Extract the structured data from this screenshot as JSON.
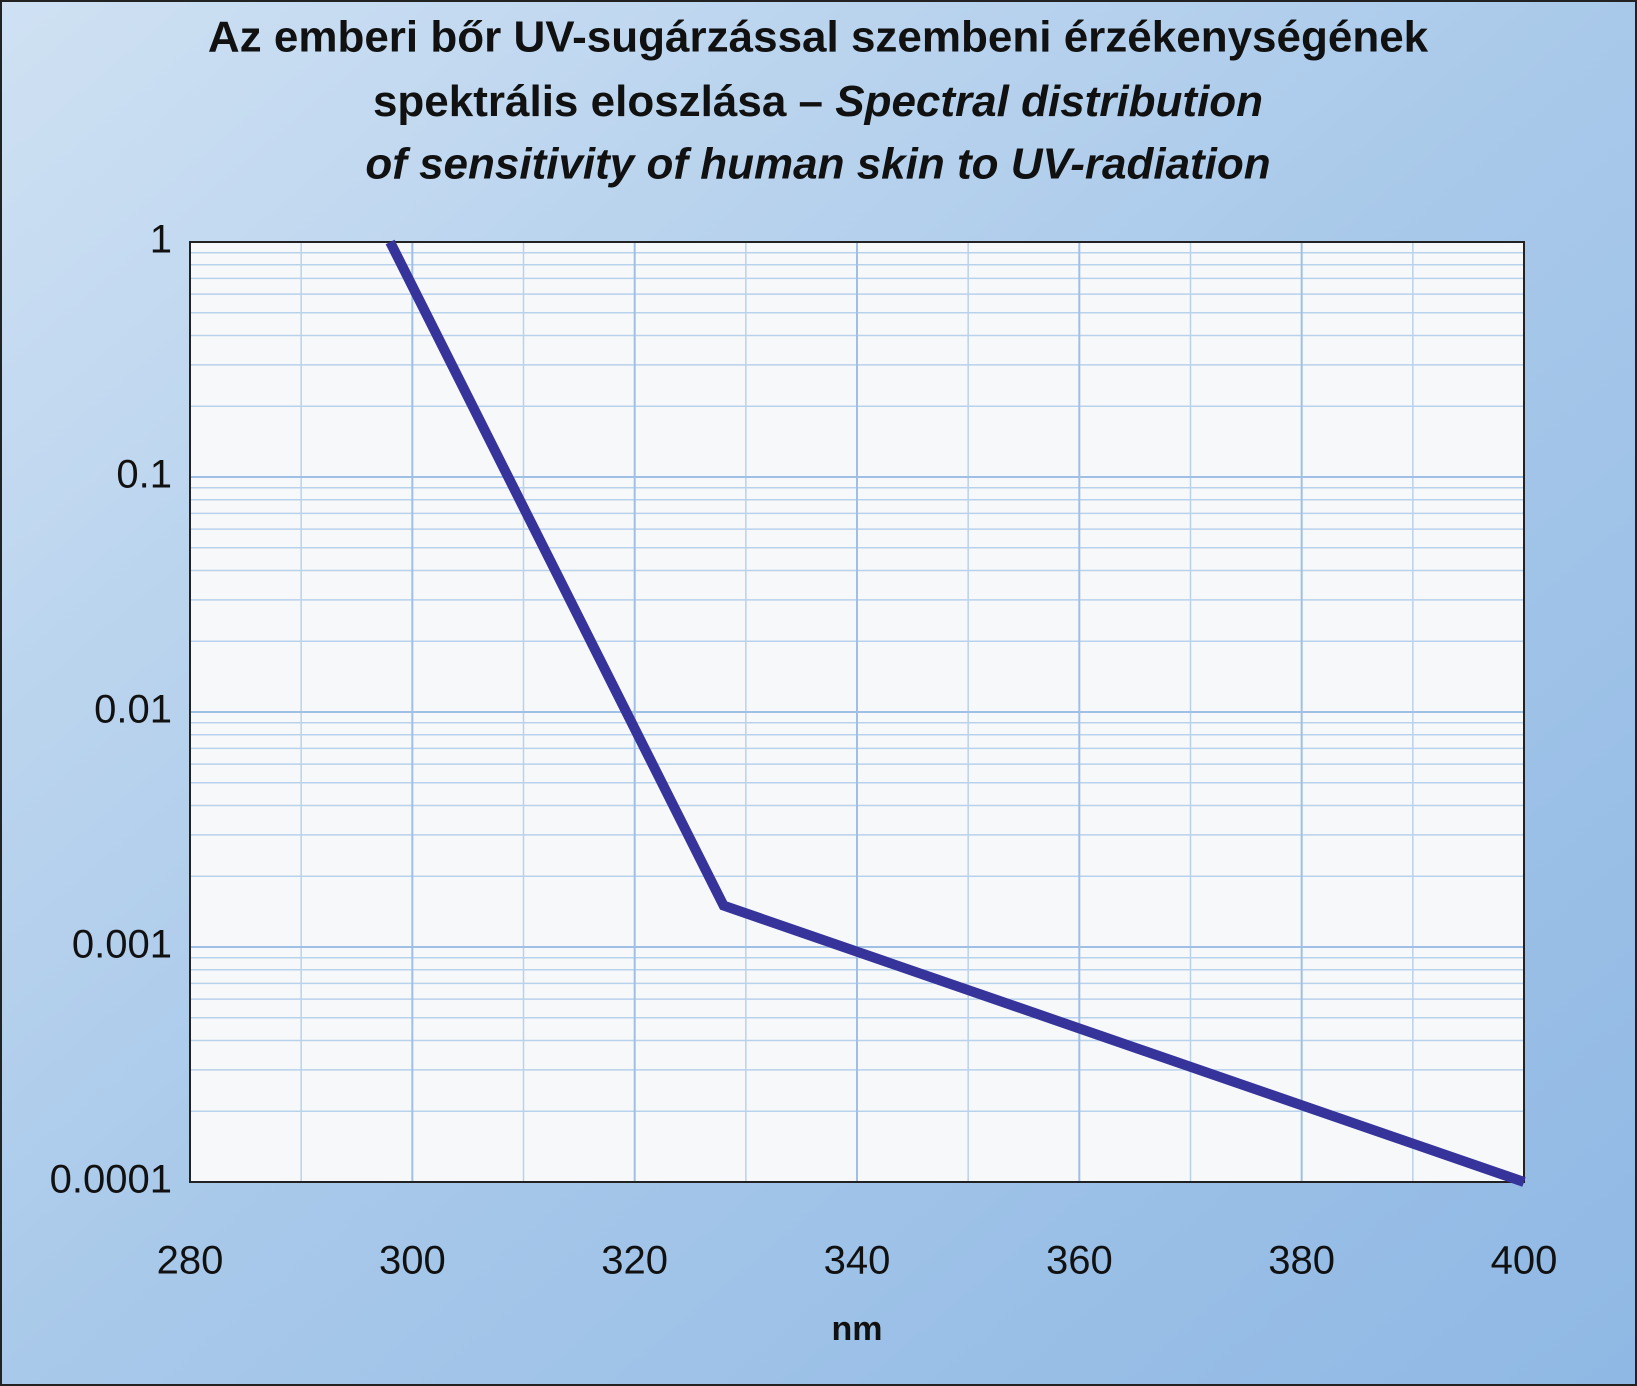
{
  "chart_data": {
    "type": "line",
    "title": {
      "hu": [
        "Az emberi bőr UV-sugárzással szembeni érzékenységének",
        "spektrális eloszlása –"
      ],
      "en": [
        "Spectral distribution",
        "of sensitivity of human skin to UV-radiation"
      ]
    },
    "x_label": "nm",
    "x": [
      298,
      328,
      400
    ],
    "series": [
      {
        "color": "#36349a",
        "values": [
          1,
          0.0015,
          0.0001
        ]
      }
    ],
    "xlim": [
      280,
      400
    ],
    "xticks": [
      280,
      300,
      320,
      340,
      360,
      380,
      400
    ],
    "ylim": [
      0.0001,
      1
    ],
    "yticks": [
      0.0001,
      0.001,
      0.01,
      0.1,
      1
    ],
    "y_scale": "log",
    "grid": true,
    "minor_grid": true
  }
}
